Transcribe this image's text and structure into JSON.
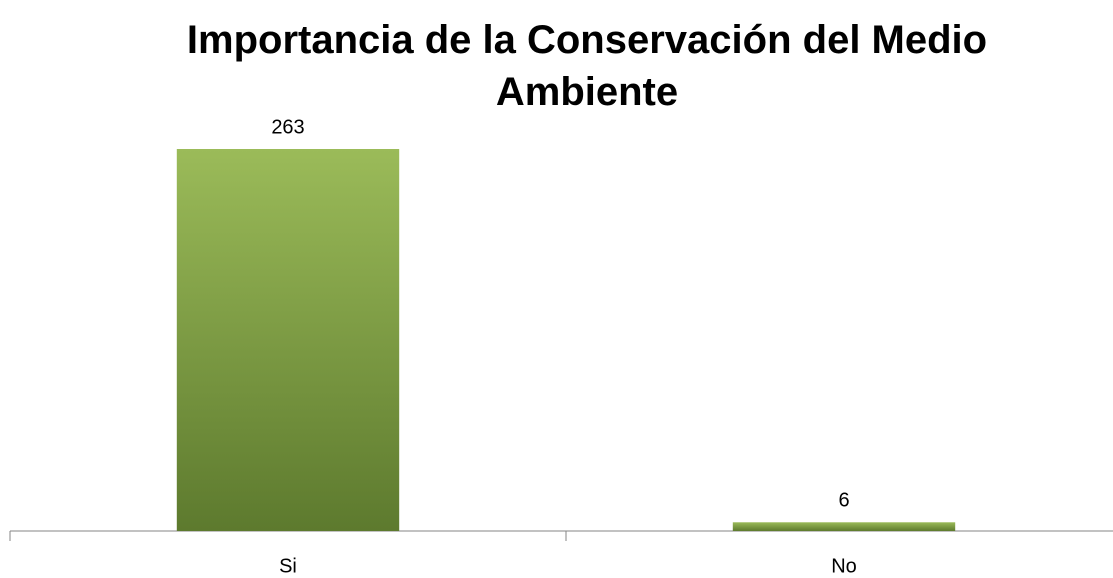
{
  "chart_data": {
    "type": "bar",
    "title": "Importancia de la Conservación del Medio Ambiente",
    "categories": [
      "Si",
      "No"
    ],
    "values": [
      263,
      6
    ],
    "color": "#9bbb59"
  }
}
